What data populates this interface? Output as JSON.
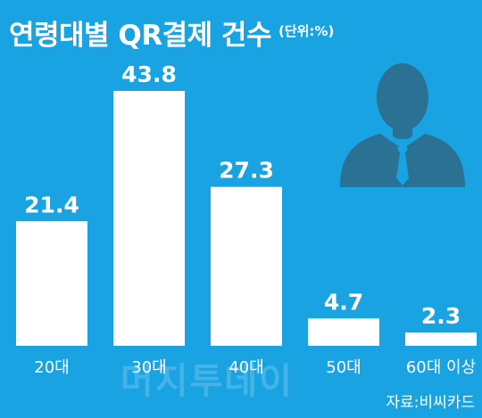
{
  "chart_data": {
    "type": "bar",
    "title": "연령대별 QR결제 건수",
    "unit_label": "(단위:%)",
    "categories": [
      "20대",
      "30대",
      "40대",
      "50대",
      "60대 이상"
    ],
    "values": [
      21.4,
      43.8,
      27.3,
      4.7,
      2.3
    ],
    "value_labels": [
      "21.4",
      "43.8",
      "27.3",
      "4.7",
      "2.3"
    ],
    "ylim": [
      0,
      43.8
    ],
    "grid": false,
    "legend": "none",
    "colors": {
      "background": "#1aa3e3",
      "bar": "#ffffff",
      "icon": "#2b7193"
    }
  },
  "watermark": "머지투데이",
  "source": "자료:비씨카드",
  "icons": {
    "person": "person-silhouette-icon"
  }
}
